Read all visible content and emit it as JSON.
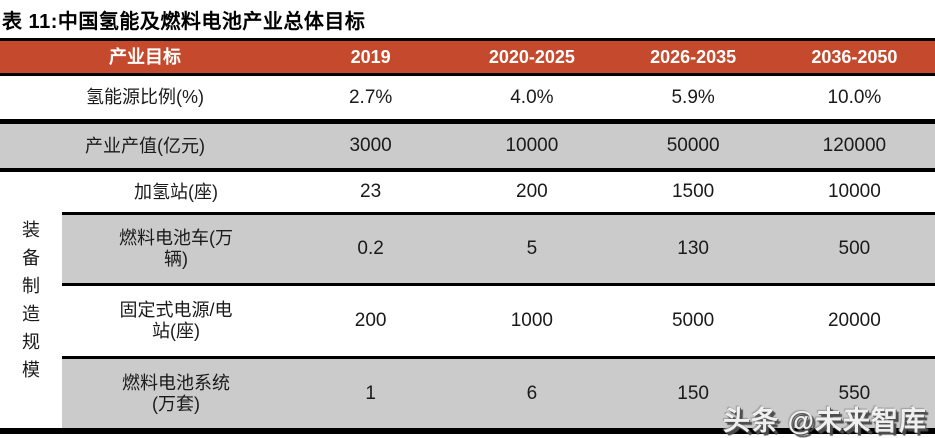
{
  "title": "表 11:中国氢能及燃料电池产业总体目标",
  "colors": {
    "header_bg": "#C5492C",
    "header_text": "#FFFFFF",
    "stripe_bg": "#CBCBCB",
    "border": "#000000"
  },
  "table": {
    "side_label": "装备制造规模",
    "columns": {
      "c0": "产业目标",
      "c1": "2019",
      "c2": "2020-2025",
      "c3": "2026-2035",
      "c4": "2036-2050"
    },
    "upper_rows": [
      {
        "label": "氢能源比例(%)",
        "values": [
          "2.7%",
          "4.0%",
          "5.9%",
          "10.0%"
        ]
      },
      {
        "label": "产业产值(亿元)",
        "values": [
          "3000",
          "10000",
          "50000",
          "120000"
        ]
      }
    ],
    "lower_rows": [
      {
        "label_line1": "加氢站(座)",
        "label_line2": "",
        "values": [
          "23",
          "200",
          "1500",
          "10000"
        ]
      },
      {
        "label_line1": "燃料电池车(万",
        "label_line2": "辆)",
        "values": [
          "0.2",
          "5",
          "130",
          "500"
        ]
      },
      {
        "label_line1": "固定式电源/电",
        "label_line2": "站(座)",
        "values": [
          "200",
          "1000",
          "5000",
          "20000"
        ]
      },
      {
        "label_line1": "燃料电池系统",
        "label_line2": "(万套)",
        "values": [
          "1",
          "6",
          "150",
          "550"
        ]
      }
    ]
  },
  "watermark": "头条 @未来智库"
}
